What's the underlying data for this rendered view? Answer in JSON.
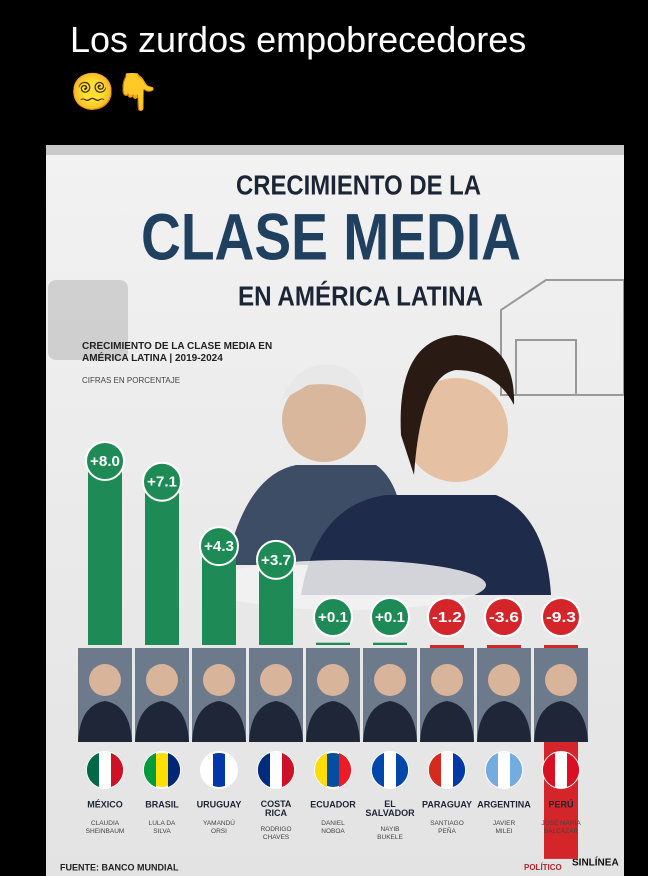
{
  "post": {
    "text": "Los zurdos empobrecedores 😵‍💫👇"
  },
  "logos": [
    "POLÍTICO",
    "SINLÍNEA"
  ],
  "chart_data": {
    "type": "bar",
    "title_lines": [
      "CRECIMIENTO DE LA",
      "CLASE MEDIA",
      "EN AMÉRICA LATINA"
    ],
    "subtitle": "CRECIMIENTO DE LA CLASE MEDIA EN AMÉRICA LATINA | 2019-2024",
    "note": "CIFRAS EN PORCENTAJE",
    "source": "FUENTE: BANCO MUNDIAL",
    "categories": [
      "MÉXICO",
      "BRASIL",
      "URUGUAY",
      "COSTA RICA",
      "ECUADOR",
      "EL SALVADOR",
      "PARAGUAY",
      "ARGENTINA",
      "PERÚ"
    ],
    "leaders": [
      "CLAUDIA SHEINBAUM",
      "LULA DA SILVA",
      "YAMANDÚ ORSI",
      "RODRIGO CHAVES",
      "DANIEL NOBOA",
      "NAYIB BUKELE",
      "SANTIAGO PEÑA",
      "JAVIER MILEI",
      "JOSÉ MARÍA BALCÁZAR"
    ],
    "values": [
      8.0,
      7.1,
      4.3,
      3.7,
      0.1,
      0.1,
      -1.2,
      -3.6,
      -9.3
    ],
    "value_labels": [
      "+8.0",
      "+7.1",
      "+4.3",
      "+3.7",
      "+0.1",
      "+0.1",
      "-1.2",
      "-3.6",
      "-9.3"
    ],
    "colors": [
      "#1e8a55",
      "#1e8a55",
      "#1e8a55",
      "#1e8a55",
      "#1e8a55",
      "#1e8a55",
      "#d4252b",
      "#d4252b",
      "#d4252b"
    ]
  }
}
